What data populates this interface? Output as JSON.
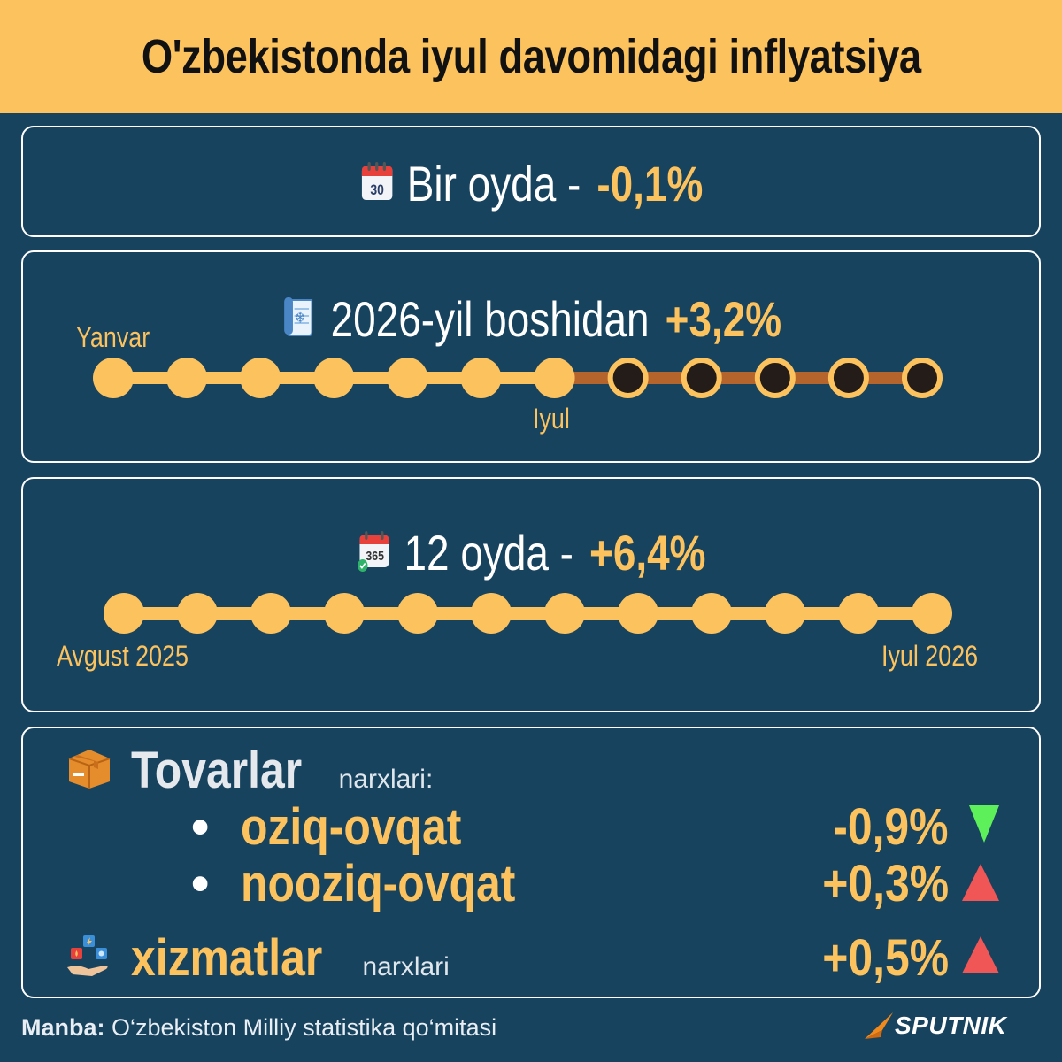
{
  "title": "O'zbekistonda iyul davomidagi inflyatsiya",
  "monthly": {
    "label": "Bir oyda -",
    "value": "-0,1%",
    "icon": "calendar-30-icon"
  },
  "ytd": {
    "label": "2026-yil boshidan",
    "value": "+3,2%",
    "icon": "calendar-page-icon",
    "start_label": "Yanvar",
    "current_label": "Iyul",
    "total_months": 12,
    "elapsed_months": 7
  },
  "annual": {
    "label": "12 oyda -",
    "value": "+6,4%",
    "icon": "calendar-365-icon",
    "start_label": "Avgust 2025",
    "end_label": "Iyul 2026",
    "total_months": 12
  },
  "goods": {
    "title": "Tovarlar",
    "suffix": "narxlari:",
    "icon": "box-icon",
    "items": [
      {
        "bullet": "•",
        "name": "oziq-ovqat",
        "value": "-0,9%",
        "trend": "down"
      },
      {
        "bullet": "•",
        "name": "nooziq-ovqat",
        "value": "+0,3%",
        "trend": "up"
      }
    ]
  },
  "services": {
    "title": "xizmatlar",
    "suffix": "narxlari",
    "value": "+0,5%",
    "trend": "up",
    "icon": "services-icon"
  },
  "footer": {
    "source_label": "Manba:",
    "source": "O‘zbekiston Milliy statistika qo‘mitasi"
  },
  "brand": "SPUTNIK",
  "colors": {
    "accent": "#fcc25e",
    "background": "#17435e",
    "down": "#5ef05a",
    "up": "#f05656",
    "future_line": "#b5652b",
    "future_dot": "#231c18"
  }
}
